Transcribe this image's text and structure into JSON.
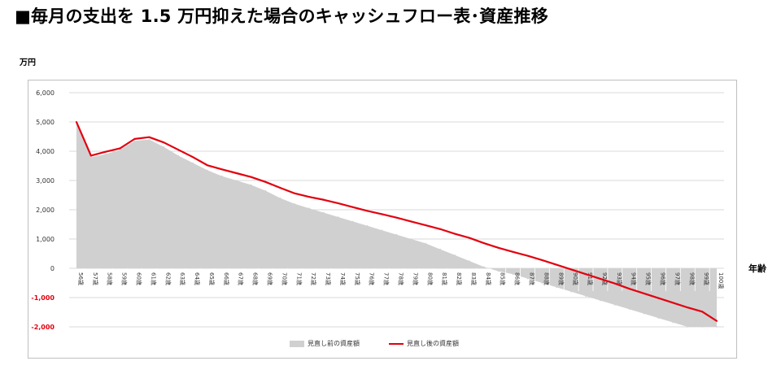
{
  "header": {
    "title": "■毎月の支出を 1.5 万円抑えた場合のキャッシュフロー表･資産推移"
  },
  "axes": {
    "y_unit": "万円",
    "x_unit": "年齢"
  },
  "colors": {
    "before_fill": "#d0d0d0",
    "after_line": "#e3000f",
    "grid": "#d9d9d9",
    "negative_tick": "#e3000f"
  },
  "chart_data": {
    "type": "area",
    "title": "",
    "xlabel": "年齢",
    "ylabel": "万円",
    "ylim": [
      -2000,
      6000
    ],
    "yticks": [
      "6,000",
      "5,000",
      "4,000",
      "3,000",
      "2,000",
      "1,000",
      "0",
      "-1,000",
      "-2,000"
    ],
    "ytick_values": [
      6000,
      5000,
      4000,
      3000,
      2000,
      1000,
      0,
      -1000,
      -2000
    ],
    "grid": true,
    "legend_position": "bottom",
    "x": [
      "56歳",
      "57歳",
      "58歳",
      "59歳",
      "60歳",
      "61歳",
      "62歳",
      "63歳",
      "64歳",
      "65歳",
      "66歳",
      "67歳",
      "68歳",
      "69歳",
      "70歳",
      "71歳",
      "72歳",
      "73歳",
      "74歳",
      "75歳",
      "76歳",
      "77歳",
      "78歳",
      "79歳",
      "80歳",
      "81歳",
      "82歳",
      "83歳",
      "84歳",
      "85歳",
      "86歳",
      "87歳",
      "88歳",
      "89歳",
      "90歳",
      "91歳",
      "92歳",
      "93歳",
      "94歳",
      "95歳",
      "96歳",
      "97歳",
      "98歳",
      "99歳",
      "100歳"
    ],
    "series": [
      {
        "name": "見直し前の資産額",
        "type": "area",
        "values": [
          4950,
          3800,
          3900,
          4050,
          4350,
          4400,
          4150,
          3850,
          3600,
          3350,
          3150,
          3000,
          2850,
          2650,
          2400,
          2200,
          2050,
          1900,
          1750,
          1600,
          1450,
          1300,
          1150,
          1000,
          850,
          650,
          450,
          250,
          50,
          -100,
          -200,
          -350,
          -500,
          -650,
          -800,
          -950,
          -1100,
          -1250,
          -1400,
          -1550,
          -1700,
          -1850,
          -2000,
          -2000,
          -2000
        ]
      },
      {
        "name": "見直し後の資産額",
        "type": "line",
        "values": [
          5000,
          3850,
          3980,
          4100,
          4420,
          4480,
          4300,
          4050,
          3800,
          3520,
          3380,
          3250,
          3120,
          2950,
          2750,
          2560,
          2440,
          2340,
          2220,
          2090,
          1960,
          1850,
          1730,
          1600,
          1470,
          1340,
          1180,
          1040,
          860,
          700,
          560,
          430,
          280,
          120,
          -40,
          -200,
          -360,
          -520,
          -700,
          -860,
          -1020,
          -1180,
          -1340,
          -1480,
          -1800
        ]
      }
    ]
  }
}
